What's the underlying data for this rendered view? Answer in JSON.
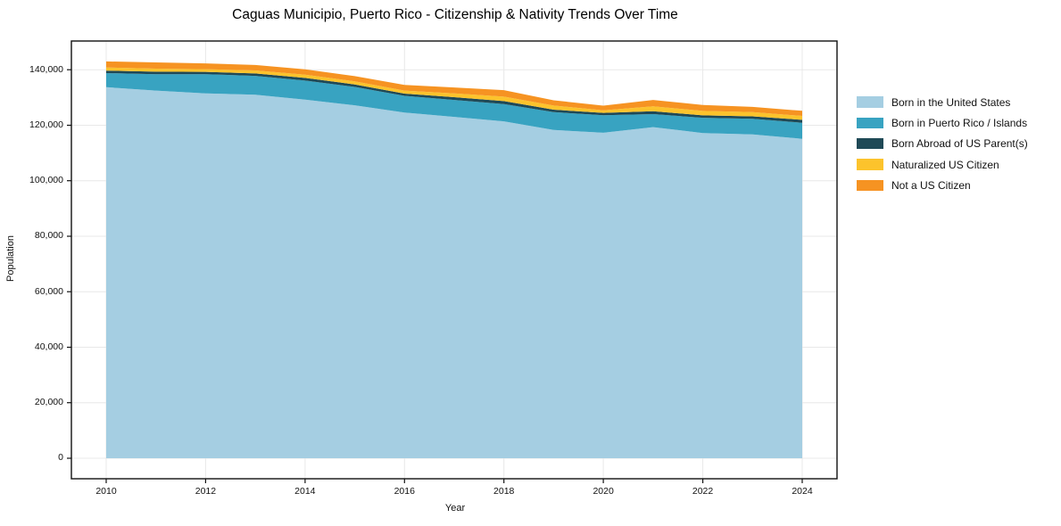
{
  "title": "Caguas Municipio, Puerto Rico - Citizenship & Nativity Trends Over Time",
  "chart_data": {
    "type": "area",
    "stacked": true,
    "title": "Caguas Municipio, Puerto Rico - Citizenship & Nativity Trends Over Time",
    "xlabel": "Year",
    "ylabel": "Population",
    "x": [
      2010,
      2011,
      2012,
      2013,
      2014,
      2015,
      2016,
      2017,
      2018,
      2019,
      2020,
      2021,
      2022,
      2023,
      2024
    ],
    "series": [
      {
        "name": "Born in the United States",
        "color": "#a5cee2",
        "values": [
          133700,
          132500,
          131500,
          131000,
          129200,
          127200,
          124600,
          123000,
          121400,
          118300,
          117300,
          119300,
          117200,
          116700,
          115100
        ]
      },
      {
        "name": "Born in Puerto Rico / Islands",
        "color": "#38a3c1",
        "values": [
          5100,
          5900,
          6900,
          6800,
          6900,
          6600,
          6000,
          6100,
          6200,
          6400,
          6300,
          4700,
          5500,
          5600,
          5800
        ]
      },
      {
        "name": "Born Abroad of US Parent(s)",
        "color": "#1f4956",
        "values": [
          900,
          900,
          850,
          850,
          950,
          900,
          800,
          1000,
          1100,
          900,
          850,
          1050,
          850,
          900,
          1050
        ]
      },
      {
        "name": "Naturalized US Citizen",
        "color": "#fcc32c",
        "values": [
          1100,
          1100,
          950,
          1100,
          1200,
          1100,
          1100,
          1400,
          1600,
          1500,
          950,
          1750,
          1600,
          1500,
          1400
        ]
      },
      {
        "name": "Not a US Citizen",
        "color": "#f69322",
        "values": [
          2200,
          2250,
          2100,
          1950,
          1900,
          1900,
          2000,
          2100,
          2350,
          1900,
          1650,
          2300,
          2150,
          1900,
          1850
        ]
      }
    ],
    "x_ticks": [
      2010,
      2012,
      2014,
      2016,
      2018,
      2020,
      2022,
      2024
    ],
    "x_tick_labels": [
      "2010",
      "2012",
      "2014",
      "2016",
      "2018",
      "2020",
      "2022",
      "2024"
    ],
    "y_ticks": [
      0,
      20000,
      40000,
      60000,
      80000,
      100000,
      120000,
      140000
    ],
    "y_tick_labels": [
      "0",
      "20,000",
      "40,000",
      "60,000",
      "80,000",
      "100,000",
      "120,000",
      "140,000"
    ],
    "xlim": [
      2009.3,
      2024.7
    ],
    "ylim": [
      -7390,
      150350
    ],
    "grid": true,
    "legend_position": "right-outside",
    "grid_color": "#e8e8e8",
    "spine_color": "#111111",
    "background_color": "#ffffff"
  }
}
